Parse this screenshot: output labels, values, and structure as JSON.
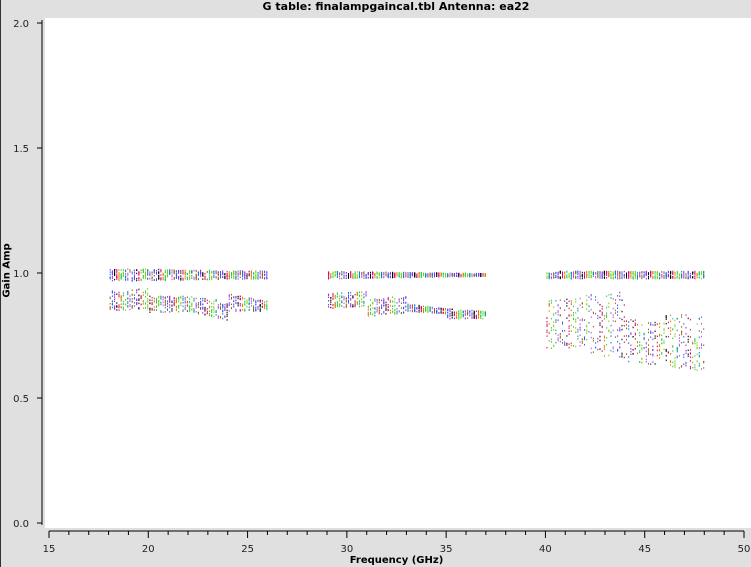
{
  "chart_data": {
    "type": "scatter",
    "title": "G table: finalampgaincal.tbl   Antenna: ea22",
    "xlabel": "Frequency (GHz)",
    "ylabel": "Gain Amp",
    "xlim": [
      15,
      50
    ],
    "ylim": [
      0,
      2.0
    ],
    "xticks": [
      "15",
      "20",
      "25",
      "30",
      "35",
      "40",
      "45",
      "50"
    ],
    "yticks": [
      "0.0",
      "0.5",
      "1.0",
      "1.5",
      "2.0"
    ],
    "grid": false,
    "colors": [
      "#1f5fff",
      "#8a2be2",
      "#000000",
      "#e0005a",
      "#d08000",
      "#22cc55",
      "#7fd000",
      "#009090",
      "#b050ff",
      "#a06000"
    ],
    "strips": [
      {
        "freq": [
          18.0,
          26.0
        ],
        "amp_start": [
          0.97,
          1.02
        ],
        "amp_end": [
          0.98,
          1.01
        ]
      },
      {
        "freq": [
          29.0,
          37.0
        ],
        "amp_start": [
          0.98,
          1.01
        ],
        "amp_end": [
          0.99,
          1.0
        ]
      },
      {
        "freq": [
          40.0,
          48.0
        ],
        "amp_start": [
          0.98,
          1.01
        ],
        "amp_end": [
          0.98,
          1.01
        ]
      },
      {
        "freq": [
          18.0,
          20.0
        ],
        "amp_start": [
          0.85,
          0.93
        ],
        "amp_end": [
          0.86,
          0.94
        ]
      },
      {
        "freq": [
          20.0,
          22.0
        ],
        "amp_start": [
          0.84,
          0.91
        ],
        "amp_end": [
          0.85,
          0.91
        ]
      },
      {
        "freq": [
          22.0,
          24.0
        ],
        "amp_start": [
          0.85,
          0.91
        ],
        "amp_end": [
          0.81,
          0.89
        ]
      },
      {
        "freq": [
          24.0,
          26.0
        ],
        "amp_start": [
          0.85,
          0.92
        ],
        "amp_end": [
          0.85,
          0.89
        ]
      },
      {
        "freq": [
          29.0,
          31.0
        ],
        "amp_start": [
          0.86,
          0.92
        ],
        "amp_end": [
          0.87,
          0.93
        ]
      },
      {
        "freq": [
          31.0,
          33.0
        ],
        "amp_start": [
          0.83,
          0.9
        ],
        "amp_end": [
          0.84,
          0.91
        ]
      },
      {
        "freq": [
          33.0,
          35.0
        ],
        "amp_start": [
          0.85,
          0.88
        ],
        "amp_end": [
          0.84,
          0.86
        ]
      },
      {
        "freq": [
          35.0,
          37.0
        ],
        "amp_start": [
          0.82,
          0.86
        ],
        "amp_end": [
          0.82,
          0.85
        ]
      },
      {
        "freq": [
          40.0,
          42.0
        ],
        "amp_start": [
          0.7,
          0.89
        ],
        "amp_end": [
          0.7,
          0.91
        ]
      },
      {
        "freq": [
          42.0,
          44.0
        ],
        "amp_start": [
          0.68,
          0.92
        ],
        "amp_end": [
          0.66,
          0.93
        ]
      },
      {
        "freq": [
          44.0,
          46.0
        ],
        "amp_start": [
          0.65,
          0.82
        ],
        "amp_end": [
          0.63,
          0.8
        ]
      },
      {
        "freq": [
          46.0,
          48.0
        ],
        "amp_start": [
          0.63,
          0.84
        ],
        "amp_end": [
          0.61,
          0.83
        ]
      }
    ]
  }
}
